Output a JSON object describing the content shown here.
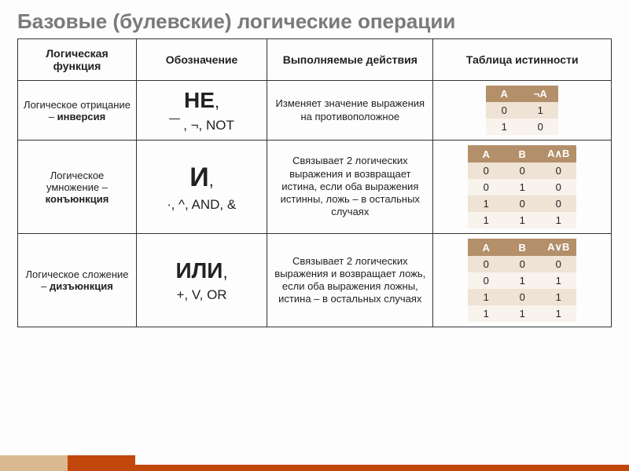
{
  "title": "Базовые (булевские) логические операции",
  "columns": {
    "c1": "Логическая функция",
    "c2": "Обозначение",
    "c3": "Выполняемые действия",
    "c4": "Таблица истинности"
  },
  "rows": {
    "not": {
      "func_pre": "Логическое отрицание – ",
      "func_bold": "инверсия",
      "main_word": "НЕ",
      "subs": ", ¬, NOT",
      "desc": "Изменяет значение выражения на противоположное",
      "tt_headers": [
        "A",
        "¬A"
      ],
      "tt_rows": [
        [
          "0",
          "1"
        ],
        [
          "1",
          "0"
        ]
      ]
    },
    "and": {
      "func_pre": "Логическое умножение – ",
      "func_bold": "конъюнкция",
      "main_word": "И",
      "subs": "∙, ^, AND, &",
      "desc": "Связывает 2 логических выражения и возвращает истина, если оба выражения истинны, ложь – в остальных случаях",
      "tt_headers": [
        "A",
        "B",
        "A∧B"
      ],
      "tt_rows": [
        [
          "0",
          "0",
          "0"
        ],
        [
          "0",
          "1",
          "0"
        ],
        [
          "1",
          "0",
          "0"
        ],
        [
          "1",
          "1",
          "1"
        ]
      ]
    },
    "or": {
      "func_pre": "Логическое сложение – ",
      "func_bold": "дизъюнкция",
      "main_word": "ИЛИ",
      "subs": "+, V, OR",
      "desc": "Связывает 2 логических выражения и возвращает ложь, если оба выражения ложны, истина – в остальных случаях",
      "tt_headers": [
        "A",
        "B",
        "A∨B"
      ],
      "tt_rows": [
        [
          "0",
          "0",
          "0"
        ],
        [
          "0",
          "1",
          "1"
        ],
        [
          "1",
          "0",
          "1"
        ],
        [
          "1",
          "1",
          "1"
        ]
      ]
    }
  },
  "style": {
    "title_color": "#7a7a7a",
    "border_color": "#333333",
    "tt_header_bg": "#b38f6a",
    "tt_header_fg": "#ffffff",
    "tt_row_odd_bg": "#efe3d6",
    "tt_row_even_bg": "#f8f3ec",
    "footer_accent_light": "#d9b98f",
    "footer_accent_dark": "#c1470d",
    "background": "#fdfdfd"
  }
}
